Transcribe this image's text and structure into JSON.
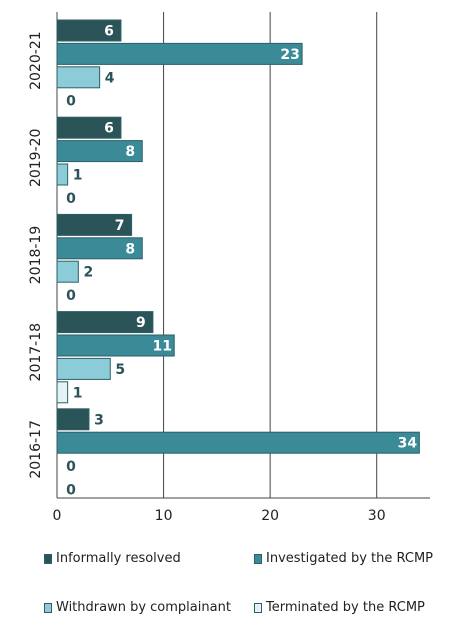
{
  "chart_data": {
    "type": "bar",
    "orientation": "horizontal",
    "categories": [
      "2020-21",
      "2019-20",
      "2018-19",
      "2017-18",
      "2016-17"
    ],
    "series": [
      {
        "name": "Informally resolved",
        "values": [
          6,
          6,
          7,
          9,
          3
        ],
        "color": "#2b5459",
        "label_color": "#ffffff"
      },
      {
        "name": "Investigated by the RCMP",
        "values": [
          23,
          8,
          8,
          11,
          34
        ],
        "color": "#3a8a98",
        "label_color": "#ffffff"
      },
      {
        "name": "Withdrawn by complainant",
        "values": [
          4,
          1,
          2,
          5,
          0
        ],
        "color": "#8ccbd8",
        "label_color": "#2b5459"
      },
      {
        "name": "Terminated by the RCMP",
        "values": [
          0,
          0,
          0,
          1,
          0
        ],
        "color": "#e3f2f6",
        "label_color": "#2b5459"
      }
    ],
    "xlim": [
      0,
      35
    ],
    "xticks": [
      0,
      10,
      20,
      30
    ],
    "grid": true,
    "legend_position": "bottom"
  }
}
